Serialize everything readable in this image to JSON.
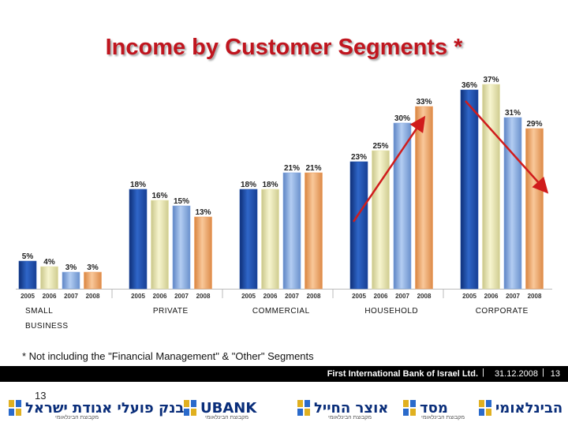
{
  "chart_data": {
    "type": "bar",
    "title": "Income by  Customer Segments *",
    "years": [
      "2005",
      "2006",
      "2007",
      "2008"
    ],
    "groups": [
      {
        "label": "SMALL\nBUSINESS",
        "values": [
          5,
          4,
          3,
          3
        ]
      },
      {
        "label": "PRIVATE",
        "values": [
          18,
          16,
          15,
          13
        ]
      },
      {
        "label": "COMMERCIAL",
        "values": [
          18,
          18,
          21,
          21
        ]
      },
      {
        "label": "HOUSEHOLD",
        "values": [
          23,
          25,
          30,
          33
        ]
      },
      {
        "label": "CORPORATE",
        "values": [
          36,
          37,
          31,
          29
        ]
      }
    ],
    "value_suffix": "%",
    "ylim": [
      0,
      40
    ],
    "series_colors": [
      "#1f4ea8",
      "#e6e3a8",
      "#84a8e0",
      "#f0a060"
    ],
    "arrows": [
      {
        "from_group": "HOUSEHOLD",
        "direction": "up",
        "color": "#d01c1c"
      },
      {
        "from_group": "CORPORATE",
        "direction": "down",
        "color": "#d01c1c"
      }
    ]
  },
  "footnote": "* Not including the \"Financial Management\" & \"Other\" Segments",
  "footer": {
    "bank_name": "First International Bank of Israel Ltd.",
    "separator": "|",
    "date": "31.12.2008",
    "page": "13"
  },
  "page_number": "13",
  "logos": [
    {
      "name": "בנק פועלי אגודת ישראל",
      "sub": "מקבוצת הבינלאומי"
    },
    {
      "name": "UBANK",
      "sub": "מקבוצת הבינלאומי"
    },
    {
      "name": "אוצר החייל",
      "sub": "מקבוצת הבינלאומי"
    },
    {
      "name": "מסד",
      "sub": "מקבוצת הבינלאומי"
    },
    {
      "name": "הבינלאומי",
      "sub": ""
    }
  ]
}
